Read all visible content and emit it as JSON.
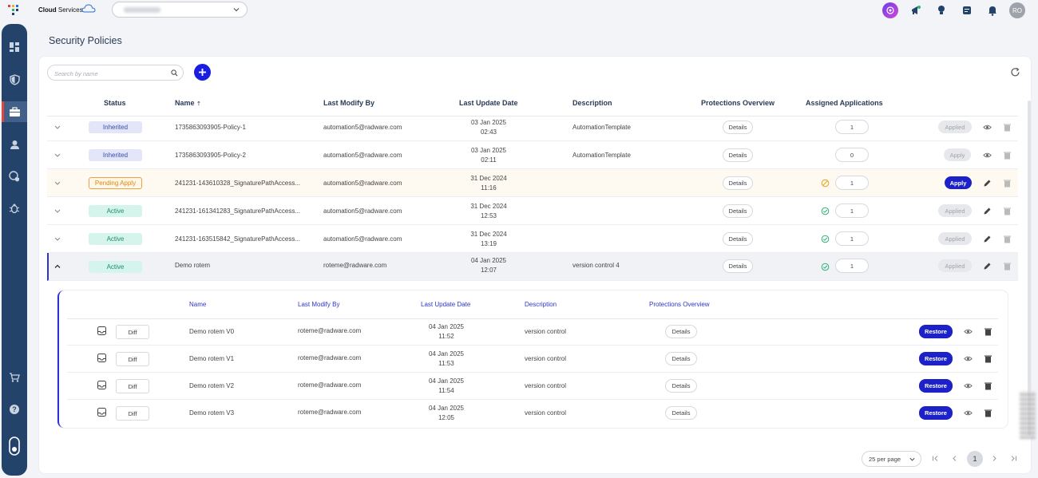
{
  "header": {
    "brand_bold": "Cloud",
    "brand_rest": " Services",
    "tenant_selected": "",
    "user_initials": "RO",
    "icons": [
      "ai-assistant-icon",
      "announcements-icon",
      "tips-icon",
      "notes-icon",
      "notifications-bell-icon"
    ]
  },
  "sidebar": {
    "items": [
      "dashboard-icon",
      "shield-icon",
      "policies-briefcase-icon",
      "user-icon",
      "globe-shield-icon",
      "bug-icon",
      "cart-icon",
      "help-icon",
      "logout-icon"
    ],
    "active_index": 2,
    "accent_color": "#e0463c"
  },
  "page": {
    "title": "Security Policies"
  },
  "toolbar": {
    "search_placeholder": "Search by name"
  },
  "table": {
    "headers": {
      "status": "Status",
      "name": "Name",
      "sort_indicator": "⇡",
      "modified_by": "Last Modify By",
      "update_date": "Last Update Date",
      "description": "Description",
      "protections": "Protections Overview",
      "assigned": "Assigned Applications"
    },
    "rows": [
      {
        "status": "Inherited",
        "status_type": "inherited",
        "name": "1735863093905-Policy-1",
        "modified_by": "automation5@radware.com",
        "date": "03 Jan 2025",
        "time": "02:43",
        "description": "AutomationTemplate",
        "details": "Details",
        "count": "1",
        "action": "Applied",
        "app_state": "none",
        "editable": false
      },
      {
        "status": "Inherited",
        "status_type": "inherited",
        "name": "1735863093905-Policy-2",
        "modified_by": "automation5@radware.com",
        "date": "03 Jan 2025",
        "time": "02:11",
        "description": "AutomationTemplate",
        "details": "Details",
        "count": "0",
        "action": "Apply",
        "app_state": "none",
        "editable": false
      },
      {
        "status": "Pending Apply",
        "status_type": "pending",
        "name": "241231-143610328_SignaturePathAccess...",
        "modified_by": "automation5@radware.com",
        "date": "31 Dec 2024",
        "time": "11:16",
        "description": "",
        "details": "Details",
        "count": "1",
        "action": "Apply",
        "app_state": "pending",
        "editable": true
      },
      {
        "status": "Active",
        "status_type": "active",
        "name": "241231-161341283_SignaturePathAccess...",
        "modified_by": "automation5@radware.com",
        "date": "31 Dec 2024",
        "time": "12:53",
        "description": "",
        "details": "Details",
        "count": "1",
        "action": "Applied",
        "app_state": "ok",
        "editable": true
      },
      {
        "status": "Active",
        "status_type": "active",
        "name": "241231-163515842_SignaturePathAccess...",
        "modified_by": "automation5@radware.com",
        "date": "31 Dec 2024",
        "time": "13:19",
        "description": "",
        "details": "Details",
        "count": "1",
        "action": "Applied",
        "app_state": "ok",
        "editable": true
      },
      {
        "status": "Active",
        "status_type": "active",
        "name": "Demo rotem",
        "modified_by": "roteme@radware.com",
        "date": "04 Jan 2025",
        "time": "12:07",
        "description": "version control 4",
        "details": "Details",
        "count": "1",
        "action": "Applied",
        "app_state": "ok",
        "editable": true
      }
    ]
  },
  "versions": {
    "headers": {
      "name": "Name",
      "modified_by": "Last Modify By",
      "update_date": "Last Update Date",
      "description": "Description",
      "protections": "Protections Overview"
    },
    "rows": [
      {
        "diff": "Diff",
        "name": "Demo rotem V0",
        "modified_by": "roteme@radware.com",
        "date": "04 Jan 2025",
        "time": "11:52",
        "description": "version control",
        "details": "Details",
        "restore": "Restore"
      },
      {
        "diff": "Diff",
        "name": "Demo rotem V1",
        "modified_by": "roteme@radware.com",
        "date": "04 Jan 2025",
        "time": "11:53",
        "description": "version control",
        "details": "Details",
        "restore": "Restore"
      },
      {
        "diff": "Diff",
        "name": "Demo rotem V2",
        "modified_by": "roteme@radware.com",
        "date": "04 Jan 2025",
        "time": "11:54",
        "description": "version control",
        "details": "Details",
        "restore": "Restore"
      },
      {
        "diff": "Diff",
        "name": "Demo rotem V3",
        "modified_by": "roteme@radware.com",
        "date": "04 Jan 2025",
        "time": "12:05",
        "description": "version control",
        "details": "Details",
        "restore": "Restore"
      }
    ]
  },
  "pagination": {
    "per_page": "25 per page",
    "current_page": "1"
  },
  "colors": {
    "primary": "#1c22c8",
    "sidebar": "#23436b",
    "inherited_bg": "#e2e6f8",
    "active_bg": "#d5f5ec",
    "pending_border": "#eba24a"
  }
}
